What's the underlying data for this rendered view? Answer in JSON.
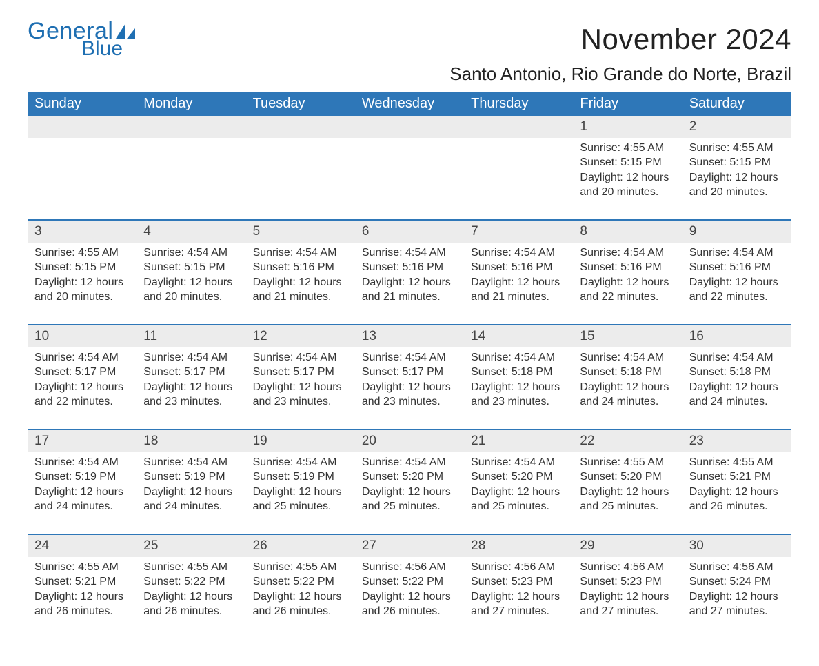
{
  "brand": {
    "word1": "General",
    "word2": "Blue",
    "text_color": "#1f6fb2",
    "sail_color": "#1f6fb2"
  },
  "title": "November 2024",
  "subtitle": "Santo Antonio, Rio Grande do Norte, Brazil",
  "colors": {
    "header_bg": "#2e77b8",
    "header_text": "#ffffff",
    "daynum_bg": "#ececec",
    "row_separator": "#2e77b8",
    "body_text": "#333333",
    "page_bg": "#ffffff"
  },
  "typography": {
    "title_fontsize": 42,
    "subtitle_fontsize": 26,
    "dayname_fontsize": 20,
    "daynum_fontsize": 19,
    "body_fontsize": 16,
    "font_family": "Arial"
  },
  "day_names": [
    "Sunday",
    "Monday",
    "Tuesday",
    "Wednesday",
    "Thursday",
    "Friday",
    "Saturday"
  ],
  "labels": {
    "sunrise": "Sunrise:",
    "sunset": "Sunset:",
    "daylight": "Daylight:"
  },
  "weeks": [
    [
      null,
      null,
      null,
      null,
      null,
      {
        "n": "1",
        "sunrise": "4:55 AM",
        "sunset": "5:15 PM",
        "daylight": "12 hours and 20 minutes."
      },
      {
        "n": "2",
        "sunrise": "4:55 AM",
        "sunset": "5:15 PM",
        "daylight": "12 hours and 20 minutes."
      }
    ],
    [
      {
        "n": "3",
        "sunrise": "4:55 AM",
        "sunset": "5:15 PM",
        "daylight": "12 hours and 20 minutes."
      },
      {
        "n": "4",
        "sunrise": "4:54 AM",
        "sunset": "5:15 PM",
        "daylight": "12 hours and 20 minutes."
      },
      {
        "n": "5",
        "sunrise": "4:54 AM",
        "sunset": "5:16 PM",
        "daylight": "12 hours and 21 minutes."
      },
      {
        "n": "6",
        "sunrise": "4:54 AM",
        "sunset": "5:16 PM",
        "daylight": "12 hours and 21 minutes."
      },
      {
        "n": "7",
        "sunrise": "4:54 AM",
        "sunset": "5:16 PM",
        "daylight": "12 hours and 21 minutes."
      },
      {
        "n": "8",
        "sunrise": "4:54 AM",
        "sunset": "5:16 PM",
        "daylight": "12 hours and 22 minutes."
      },
      {
        "n": "9",
        "sunrise": "4:54 AM",
        "sunset": "5:16 PM",
        "daylight": "12 hours and 22 minutes."
      }
    ],
    [
      {
        "n": "10",
        "sunrise": "4:54 AM",
        "sunset": "5:17 PM",
        "daylight": "12 hours and 22 minutes."
      },
      {
        "n": "11",
        "sunrise": "4:54 AM",
        "sunset": "5:17 PM",
        "daylight": "12 hours and 23 minutes."
      },
      {
        "n": "12",
        "sunrise": "4:54 AM",
        "sunset": "5:17 PM",
        "daylight": "12 hours and 23 minutes."
      },
      {
        "n": "13",
        "sunrise": "4:54 AM",
        "sunset": "5:17 PM",
        "daylight": "12 hours and 23 minutes."
      },
      {
        "n": "14",
        "sunrise": "4:54 AM",
        "sunset": "5:18 PM",
        "daylight": "12 hours and 23 minutes."
      },
      {
        "n": "15",
        "sunrise": "4:54 AM",
        "sunset": "5:18 PM",
        "daylight": "12 hours and 24 minutes."
      },
      {
        "n": "16",
        "sunrise": "4:54 AM",
        "sunset": "5:18 PM",
        "daylight": "12 hours and 24 minutes."
      }
    ],
    [
      {
        "n": "17",
        "sunrise": "4:54 AM",
        "sunset": "5:19 PM",
        "daylight": "12 hours and 24 minutes."
      },
      {
        "n": "18",
        "sunrise": "4:54 AM",
        "sunset": "5:19 PM",
        "daylight": "12 hours and 24 minutes."
      },
      {
        "n": "19",
        "sunrise": "4:54 AM",
        "sunset": "5:19 PM",
        "daylight": "12 hours and 25 minutes."
      },
      {
        "n": "20",
        "sunrise": "4:54 AM",
        "sunset": "5:20 PM",
        "daylight": "12 hours and 25 minutes."
      },
      {
        "n": "21",
        "sunrise": "4:54 AM",
        "sunset": "5:20 PM",
        "daylight": "12 hours and 25 minutes."
      },
      {
        "n": "22",
        "sunrise": "4:55 AM",
        "sunset": "5:20 PM",
        "daylight": "12 hours and 25 minutes."
      },
      {
        "n": "23",
        "sunrise": "4:55 AM",
        "sunset": "5:21 PM",
        "daylight": "12 hours and 26 minutes."
      }
    ],
    [
      {
        "n": "24",
        "sunrise": "4:55 AM",
        "sunset": "5:21 PM",
        "daylight": "12 hours and 26 minutes."
      },
      {
        "n": "25",
        "sunrise": "4:55 AM",
        "sunset": "5:22 PM",
        "daylight": "12 hours and 26 minutes."
      },
      {
        "n": "26",
        "sunrise": "4:55 AM",
        "sunset": "5:22 PM",
        "daylight": "12 hours and 26 minutes."
      },
      {
        "n": "27",
        "sunrise": "4:56 AM",
        "sunset": "5:22 PM",
        "daylight": "12 hours and 26 minutes."
      },
      {
        "n": "28",
        "sunrise": "4:56 AM",
        "sunset": "5:23 PM",
        "daylight": "12 hours and 27 minutes."
      },
      {
        "n": "29",
        "sunrise": "4:56 AM",
        "sunset": "5:23 PM",
        "daylight": "12 hours and 27 minutes."
      },
      {
        "n": "30",
        "sunrise": "4:56 AM",
        "sunset": "5:24 PM",
        "daylight": "12 hours and 27 minutes."
      }
    ]
  ]
}
